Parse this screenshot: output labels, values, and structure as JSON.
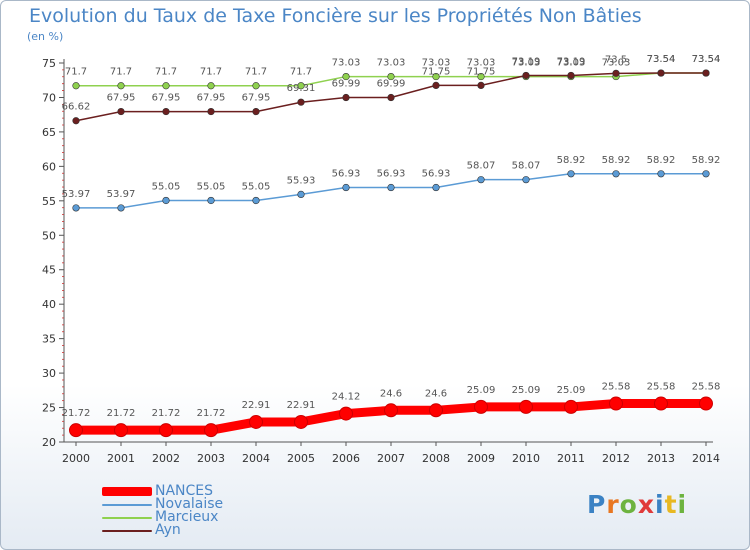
{
  "title": "Evolution du Taux de Taxe Foncière sur les Propriétés Non Bâties",
  "unit_label": "(en %)",
  "logo": {
    "text": "Proxiti",
    "letter_colors": [
      "#3b82c4",
      "#e87722",
      "#6db33f",
      "#e03a3a",
      "#3b82c4",
      "#e8b822",
      "#6db33f"
    ]
  },
  "chart_data": {
    "type": "line",
    "categories": [
      "2000",
      "2001",
      "2002",
      "2003",
      "2004",
      "2005",
      "2006",
      "2007",
      "2008",
      "2009",
      "2010",
      "2011",
      "2012",
      "2013",
      "2014"
    ],
    "ylim": [
      20,
      75
    ],
    "yticks": [
      20,
      25,
      30,
      35,
      40,
      45,
      50,
      55,
      60,
      65,
      70,
      75
    ],
    "grid": false,
    "legend_position": "bottom-left",
    "series": [
      {
        "name": "Marcieux",
        "color": "#8fd14f",
        "values": [
          71.7,
          71.7,
          71.7,
          71.7,
          71.7,
          71.7,
          73.03,
          73.03,
          73.03,
          73.03,
          73.03,
          73.03,
          73.03,
          73.54,
          73.54
        ],
        "labels": [
          "71.7",
          "71.7",
          "71.7",
          "71.7",
          "71.7",
          "71.7",
          "73.03",
          "73.03",
          "73.03",
          "73.03",
          "73.03",
          "73.03",
          "73.03",
          "73.54",
          "73.54"
        ]
      },
      {
        "name": "Ayn",
        "color": "#6b1f1f",
        "values": [
          66.62,
          67.95,
          67.95,
          67.95,
          67.95,
          69.31,
          69.99,
          69.99,
          71.75,
          71.75,
          73.19,
          73.19,
          73.5,
          73.54,
          73.54
        ],
        "labels": [
          "66.62",
          "67.95",
          "67.95",
          "67.95",
          "67.95",
          "69.31",
          "69.99",
          "69.99",
          "71.75",
          "71.75",
          "73.19",
          "73.19",
          "73.5",
          "73.54",
          "73.54"
        ]
      },
      {
        "name": "Novalaise",
        "color": "#5b9bd5",
        "values": [
          53.97,
          53.97,
          55.05,
          55.05,
          55.05,
          55.93,
          56.93,
          56.93,
          56.93,
          58.07,
          58.07,
          58.92,
          58.92,
          58.92,
          58.92
        ],
        "labels": [
          "53.97",
          "53.97",
          "55.05",
          "55.05",
          "55.05",
          "55.93",
          "56.93",
          "56.93",
          "56.93",
          "58.07",
          "58.07",
          "58.92",
          "58.92",
          "58.92",
          "58.92"
        ]
      },
      {
        "name": "NANCES",
        "color": "#ff0000",
        "values": [
          21.72,
          21.72,
          21.72,
          21.72,
          22.91,
          22.91,
          24.12,
          24.6,
          24.6,
          25.09,
          25.09,
          25.09,
          25.58,
          25.58,
          25.58
        ],
        "labels": [
          "21.72",
          "21.72",
          "21.72",
          "21.72",
          "22.91",
          "22.91",
          "24.12",
          "24.6",
          "24.6",
          "25.09",
          "25.09",
          "25.09",
          "25.58",
          "25.58",
          "25.58"
        ]
      }
    ]
  },
  "legend": [
    {
      "label": "NANCES",
      "color": "#ff0000"
    },
    {
      "label": "Novalaise",
      "color": "#5b9bd5"
    },
    {
      "label": "Marcieux",
      "color": "#8fd14f"
    },
    {
      "label": "Ayn",
      "color": "#6b1f1f"
    }
  ]
}
